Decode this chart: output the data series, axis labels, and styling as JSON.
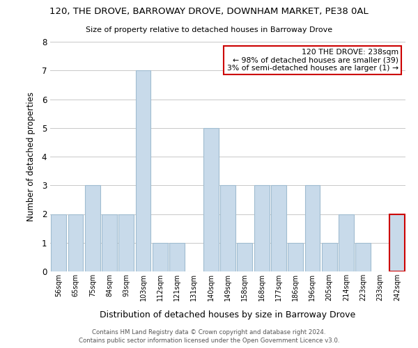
{
  "title": "120, THE DROVE, BARROWAY DROVE, DOWNHAM MARKET, PE38 0AL",
  "subtitle": "Size of property relative to detached houses in Barroway Drove",
  "xlabel": "Distribution of detached houses by size in Barroway Drove",
  "ylabel": "Number of detached properties",
  "bar_color": "#c8daea",
  "bar_edge_color": "#a0bcd0",
  "highlight_bar_edge_color": "#cc0000",
  "bins": [
    "56sqm",
    "65sqm",
    "75sqm",
    "84sqm",
    "93sqm",
    "103sqm",
    "112sqm",
    "121sqm",
    "131sqm",
    "140sqm",
    "149sqm",
    "158sqm",
    "168sqm",
    "177sqm",
    "186sqm",
    "196sqm",
    "205sqm",
    "214sqm",
    "223sqm",
    "233sqm",
    "242sqm"
  ],
  "values": [
    2,
    2,
    3,
    2,
    2,
    7,
    1,
    1,
    0,
    5,
    3,
    1,
    3,
    3,
    1,
    3,
    1,
    2,
    1,
    0,
    2
  ],
  "highlight_index": 20,
  "annotation_title": "120 THE DROVE: 238sqm",
  "annotation_line1": "← 98% of detached houses are smaller (39)",
  "annotation_line2": "3% of semi-detached houses are larger (1) →",
  "annotation_box_color": "#ffffff",
  "annotation_box_edge_color": "#cc0000",
  "ylim": [
    0,
    8
  ],
  "yticks": [
    0,
    1,
    2,
    3,
    4,
    5,
    6,
    7,
    8
  ],
  "footer_line1": "Contains HM Land Registry data © Crown copyright and database right 2024.",
  "footer_line2": "Contains public sector information licensed under the Open Government Licence v3.0.",
  "bg_color": "#ffffff",
  "grid_color": "#c8c8c8"
}
